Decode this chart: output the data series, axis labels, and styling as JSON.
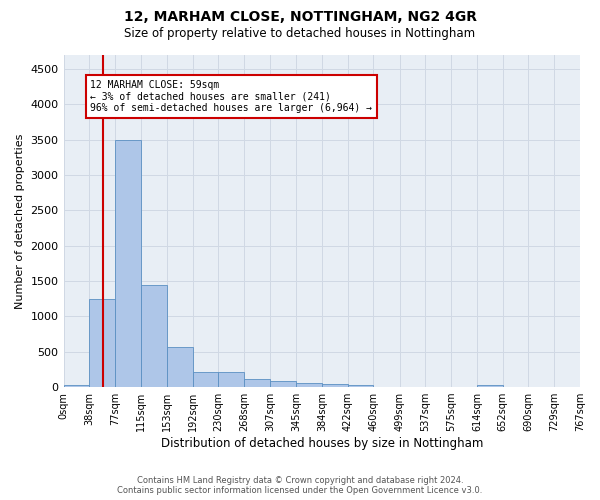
{
  "title": "12, MARHAM CLOSE, NOTTINGHAM, NG2 4GR",
  "subtitle": "Size of property relative to detached houses in Nottingham",
  "xlabel": "Distribution of detached houses by size in Nottingham",
  "ylabel": "Number of detached properties",
  "bin_labels": [
    "0sqm",
    "38sqm",
    "77sqm",
    "115sqm",
    "153sqm",
    "192sqm",
    "230sqm",
    "268sqm",
    "307sqm",
    "345sqm",
    "384sqm",
    "422sqm",
    "460sqm",
    "499sqm",
    "537sqm",
    "575sqm",
    "614sqm",
    "652sqm",
    "690sqm",
    "729sqm",
    "767sqm"
  ],
  "bar_values": [
    30,
    1250,
    3500,
    1450,
    570,
    220,
    220,
    120,
    80,
    55,
    40,
    30,
    5,
    0,
    0,
    0,
    25,
    0,
    0,
    0,
    0
  ],
  "bar_color": "#aec6e8",
  "bar_edge_color": "#5a8fc2",
  "property_sqm": 59,
  "property_line_label": "12 MARHAM CLOSE: 59sqm",
  "annotation_line1": "← 3% of detached houses are smaller (241)",
  "annotation_line2": "96% of semi-detached houses are larger (6,964) →",
  "annotation_box_color": "#ffffff",
  "annotation_box_edge": "#cc0000",
  "vline_color": "#cc0000",
  "ylim": [
    0,
    4700
  ],
  "yticks": [
    0,
    500,
    1000,
    1500,
    2000,
    2500,
    3000,
    3500,
    4000,
    4500
  ],
  "grid_color": "#d0d8e4",
  "bg_color": "#e8eef5",
  "footer_line1": "Contains HM Land Registry data © Crown copyright and database right 2024.",
  "footer_line2": "Contains public sector information licensed under the Open Government Licence v3.0."
}
